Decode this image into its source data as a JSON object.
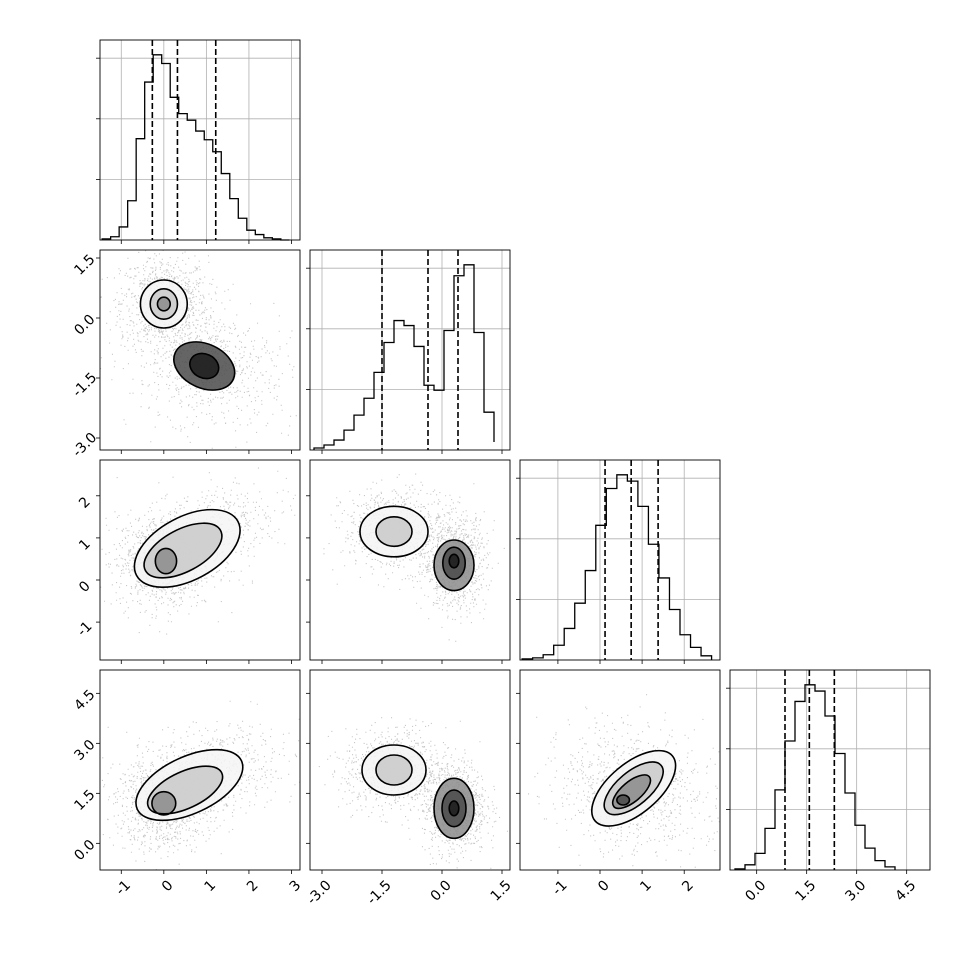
{
  "chart_data": {
    "type": "corner",
    "parameters": [
      "",
      "",
      "",
      ""
    ],
    "quantile_lines": "dashed",
    "histograms": [
      {
        "param": 0,
        "xlim": [
          -1.5,
          3.2
        ],
        "xticks": [
          -1,
          0,
          1,
          2,
          3
        ],
        "bins": [
          -1.45,
          -1.25,
          -1.05,
          -0.85,
          -0.65,
          -0.45,
          -0.25,
          -0.05,
          0.15,
          0.35,
          0.55,
          0.75,
          0.95,
          1.15,
          1.35,
          1.55,
          1.75,
          1.95,
          2.15,
          2.35,
          2.55,
          2.75,
          2.95
        ],
        "counts": [
          1,
          3,
          12,
          36,
          93,
          145,
          170,
          162,
          131,
          116,
          110,
          100,
          92,
          81,
          61,
          38,
          20,
          9,
          5,
          2,
          1,
          0
        ],
        "quantiles": [
          -0.27,
          0.32,
          1.22
        ]
      },
      {
        "param": 1,
        "xlim": [
          -3.3,
          1.7
        ],
        "xticks": [
          -3.0,
          -1.5,
          0.0,
          1.5
        ],
        "xticklabels": [
          "-3.0",
          "-1.5",
          "0.0",
          "1.5"
        ],
        "bins": [
          -3.2,
          -2.95,
          -2.7,
          -2.45,
          -2.2,
          -1.95,
          -1.7,
          -1.45,
          -1.2,
          -0.95,
          -0.7,
          -0.45,
          -0.2,
          0.05,
          0.3,
          0.55,
          0.8,
          1.05,
          1.3
        ],
        "counts": [
          2,
          5,
          10,
          20,
          35,
          52,
          78,
          108,
          130,
          125,
          104,
          65,
          60,
          120,
          175,
          186,
          118,
          38,
          8
        ],
        "quantiles": [
          -1.5,
          -0.35,
          0.4
        ]
      },
      {
        "param": 2,
        "xlim": [
          -1.9,
          2.85
        ],
        "xticks": [
          -1,
          0,
          1,
          2
        ],
        "bins": [
          -1.85,
          -1.6,
          -1.35,
          -1.1,
          -0.85,
          -0.6,
          -0.35,
          -0.1,
          0.15,
          0.4,
          0.65,
          0.9,
          1.15,
          1.4,
          1.65,
          1.9,
          2.15,
          2.4,
          2.65
        ],
        "counts": [
          1,
          2,
          5,
          14,
          30,
          54,
          85,
          128,
          163,
          176,
          170,
          146,
          110,
          78,
          48,
          24,
          12,
          4
        ],
        "quantiles": [
          0.12,
          0.74,
          1.38
        ]
      },
      {
        "param": 3,
        "xlim": [
          -0.8,
          5.2
        ],
        "xticks": [
          0.0,
          1.5,
          3.0,
          4.5
        ],
        "xticklabels": [
          "0.0",
          "1.5",
          "3.0",
          "4.5"
        ],
        "bins": [
          -0.65,
          -0.35,
          -0.05,
          0.25,
          0.55,
          0.85,
          1.15,
          1.45,
          1.75,
          2.05,
          2.35,
          2.65,
          2.95,
          3.25,
          3.55,
          3.85,
          4.15
        ],
        "counts": [
          1,
          5,
          16,
          40,
          77,
          124,
          162,
          178,
          172,
          148,
          112,
          74,
          43,
          21,
          9,
          3
        ],
        "quantiles": [
          0.85,
          1.58,
          2.33
        ]
      }
    ],
    "axes": {
      "0": {
        "lim": [
          -1.5,
          3.2
        ],
        "ticks": [
          -1,
          0,
          1,
          2,
          3
        ],
        "ticklabels": [
          "-1",
          "0",
          "1",
          "2",
          "3"
        ]
      },
      "1": {
        "lim": [
          -3.3,
          1.7
        ],
        "ticks": [
          -3.0,
          -1.5,
          0.0,
          1.5
        ],
        "ticklabels": [
          "-3.0",
          "-1.5",
          "0.0",
          "1.5"
        ]
      },
      "2": {
        "lim": [
          -1.9,
          2.85
        ],
        "ticks": [
          -1,
          0,
          1,
          2
        ],
        "ticklabels": [
          "-1",
          "0",
          "1",
          "2"
        ]
      },
      "3": {
        "lim": [
          -0.8,
          5.2
        ],
        "ticks": [
          0.0,
          1.5,
          3.0,
          4.5
        ],
        "ticklabels": [
          "0.0",
          "1.5",
          "3.0",
          "4.5"
        ]
      }
    },
    "pair_panels": [
      {
        "x": 0,
        "y": 1,
        "modes": [
          {
            "cx": 0.0,
            "cy": 0.4,
            "sx": 0.32,
            "sy": 0.36,
            "rot": 0,
            "weight": 1.0
          },
          {
            "cx": 1.0,
            "cy": -1.2,
            "sx": 0.55,
            "sy": 0.45,
            "rot": -25,
            "weight": 0.8
          }
        ],
        "contours": [
          {
            "cx": 0.0,
            "cy": 0.35,
            "rx": 0.55,
            "ry": 0.6,
            "rot": 0
          },
          {
            "cx": 0.0,
            "cy": 0.35,
            "rx": 0.32,
            "ry": 0.38,
            "rot": 0
          },
          {
            "cx": 0.0,
            "cy": 0.35,
            "rx": 0.15,
            "ry": 0.17,
            "rot": 0
          },
          {
            "cx": 0.95,
            "cy": -1.2,
            "rx": 0.75,
            "ry": 0.55,
            "rot": -25
          },
          {
            "cx": 0.95,
            "cy": -1.2,
            "rx": 0.35,
            "ry": 0.3,
            "rot": -25
          }
        ]
      },
      {
        "x": 0,
        "y": 2,
        "modes": [
          {
            "cx": 0.0,
            "cy": 0.45,
            "sx": 0.35,
            "sy": 0.35,
            "rot": 0,
            "weight": 1.0
          },
          {
            "cx": 0.9,
            "cy": 1.05,
            "sx": 0.6,
            "sy": 0.3,
            "rot": 25,
            "weight": 0.7
          }
        ],
        "contours": [
          {
            "cx": 0.55,
            "cy": 0.75,
            "rx": 1.35,
            "ry": 0.75,
            "rot": 28
          },
          {
            "cx": 0.45,
            "cy": 0.7,
            "rx": 1.0,
            "ry": 0.5,
            "rot": 28
          },
          {
            "cx": 0.05,
            "cy": 0.45,
            "rx": 0.25,
            "ry": 0.3,
            "rot": 0
          }
        ]
      },
      {
        "x": 1,
        "y": 2,
        "modes": [
          {
            "cx": -1.2,
            "cy": 1.2,
            "sx": 0.4,
            "sy": 0.3,
            "rot": 0,
            "weight": 0.85
          },
          {
            "cx": 0.3,
            "cy": 0.45,
            "sx": 0.25,
            "sy": 0.35,
            "rot": 0,
            "weight": 1.0
          }
        ],
        "contours": [
          {
            "cx": -1.2,
            "cy": 1.15,
            "rx": 0.85,
            "ry": 0.6,
            "rot": 0
          },
          {
            "cx": -1.2,
            "cy": 1.15,
            "rx": 0.45,
            "ry": 0.35,
            "rot": 0
          },
          {
            "cx": 0.3,
            "cy": 0.35,
            "rx": 0.5,
            "ry": 0.6,
            "rot": 0
          },
          {
            "cx": 0.3,
            "cy": 0.4,
            "rx": 0.28,
            "ry": 0.38,
            "rot": 0
          },
          {
            "cx": 0.3,
            "cy": 0.45,
            "rx": 0.12,
            "ry": 0.16,
            "rot": 0
          }
        ]
      },
      {
        "x": 0,
        "y": 3,
        "modes": [
          {
            "cx": 0.0,
            "cy": 1.2,
            "sx": 0.35,
            "sy": 0.45,
            "rot": 0,
            "weight": 1.0
          },
          {
            "cx": 1.0,
            "cy": 2.1,
            "sx": 0.6,
            "sy": 0.4,
            "rot": 25,
            "weight": 0.7
          }
        ],
        "contours": [
          {
            "cx": 0.6,
            "cy": 1.75,
            "rx": 1.35,
            "ry": 0.85,
            "rot": 25
          },
          {
            "cx": 0.5,
            "cy": 1.6,
            "rx": 0.95,
            "ry": 0.55,
            "rot": 25
          },
          {
            "cx": 0.0,
            "cy": 1.2,
            "rx": 0.28,
            "ry": 0.35,
            "rot": 0
          }
        ]
      },
      {
        "x": 1,
        "y": 3,
        "modes": [
          {
            "cx": -1.2,
            "cy": 2.2,
            "sx": 0.4,
            "sy": 0.4,
            "rot": 0,
            "weight": 0.85
          },
          {
            "cx": 0.3,
            "cy": 1.1,
            "sx": 0.25,
            "sy": 0.45,
            "rot": 0,
            "weight": 1.0
          }
        ],
        "contours": [
          {
            "cx": -1.2,
            "cy": 2.2,
            "rx": 0.8,
            "ry": 0.75,
            "rot": 0
          },
          {
            "cx": -1.2,
            "cy": 2.2,
            "rx": 0.45,
            "ry": 0.45,
            "rot": 0
          },
          {
            "cx": 0.3,
            "cy": 1.05,
            "rx": 0.5,
            "ry": 0.9,
            "rot": 0
          },
          {
            "cx": 0.3,
            "cy": 1.05,
            "rx": 0.3,
            "ry": 0.55,
            "rot": 0
          },
          {
            "cx": 0.3,
            "cy": 1.05,
            "rx": 0.12,
            "ry": 0.22,
            "rot": 0
          }
        ]
      },
      {
        "x": 2,
        "y": 3,
        "modes": [
          {
            "cx": 0.8,
            "cy": 1.6,
            "sx": 0.55,
            "sy": 0.6,
            "rot": 40,
            "weight": 1.0
          }
        ],
        "contours": [
          {
            "cx": 0.8,
            "cy": 1.65,
            "rx": 1.2,
            "ry": 0.75,
            "rot": 40
          },
          {
            "cx": 0.8,
            "cy": 1.65,
            "rx": 0.85,
            "ry": 0.5,
            "rot": 40
          },
          {
            "cx": 0.75,
            "cy": 1.55,
            "rx": 0.55,
            "ry": 0.3,
            "rot": 40
          },
          {
            "cx": 0.55,
            "cy": 1.3,
            "rx": 0.15,
            "ry": 0.15,
            "rot": 0
          }
        ]
      }
    ]
  }
}
